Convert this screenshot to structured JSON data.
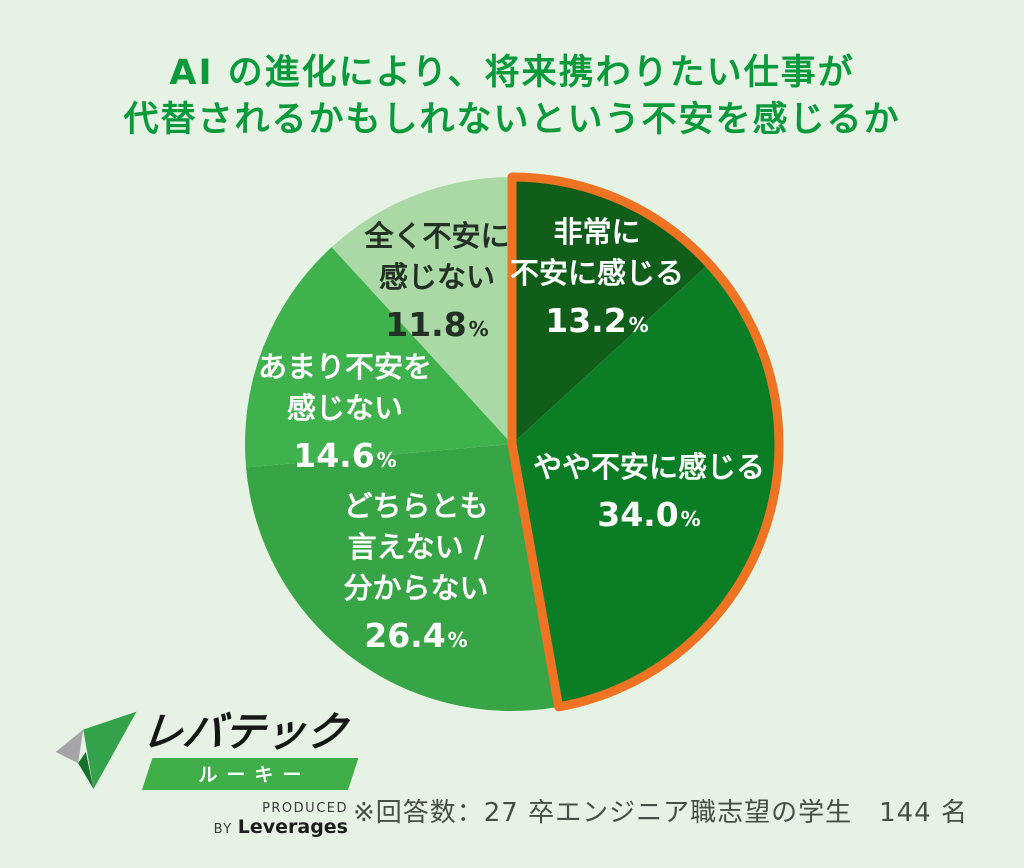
{
  "page": {
    "background": "#e5f2e4"
  },
  "title": {
    "line1": "AI の進化により、将来携わりたい仕事が",
    "line2": "代替されるかもしれないという不安を感じるか",
    "color": "#0a9a3c"
  },
  "chart_data": {
    "type": "pie",
    "title": "AIの進化により、将来携わりたい仕事が代替されるかもしれないという不安を感じるか",
    "start_angle_deg": 0,
    "direction": "clockwise",
    "background": "#e5f2e4",
    "highlight": {
      "slice_indexes": [
        0,
        1
      ],
      "outline_color": "#ee7423",
      "outline_width": 9
    },
    "slices": [
      {
        "label_lines": [
          "非常に",
          "不安に感じる"
        ],
        "value": 13.2,
        "value_label": "13.2",
        "unit": "%",
        "color": "#115e1b",
        "text_color": "#ffffff"
      },
      {
        "label_lines": [
          "やや不安に感じる"
        ],
        "value": 34.0,
        "value_label": "34.0",
        "unit": "%",
        "color": "#0b7e25",
        "text_color": "#ffffff"
      },
      {
        "label_lines": [
          "どちらとも",
          "言えない /",
          "分からない"
        ],
        "value": 26.4,
        "value_label": "26.4",
        "unit": "%",
        "color": "#37a446",
        "text_color": "#ffffff"
      },
      {
        "label_lines": [
          "あまり不安を",
          "感じない"
        ],
        "value": 14.6,
        "value_label": "14.6",
        "unit": "%",
        "color": "#3fb24e",
        "text_color": "#ffffff"
      },
      {
        "label_lines": [
          "全く不安に",
          "感じない"
        ],
        "value": 11.8,
        "value_label": "11.8",
        "unit": "%",
        "color": "#abd9a6",
        "text_color": "#233024"
      }
    ]
  },
  "footnote": {
    "text": "※回答数：27 卒エンジニア職志望の学生　144 名",
    "color": "#454f46"
  },
  "logo": {
    "brand": "レバテック",
    "sub": "ルーキー",
    "banner_color": "#3fae49",
    "produced_by": "PRODUCED BY",
    "company": "Leverages",
    "icon_colors": {
      "blade": "#34a24a",
      "short_arm": "#a5a5a8",
      "tip": "#17702a"
    }
  }
}
